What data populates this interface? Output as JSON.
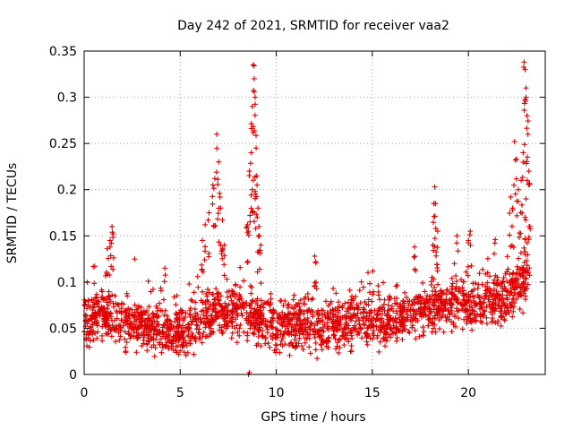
{
  "chart_data": {
    "type": "scatter",
    "title": "Day 242 of 2021, SRMTID for receiver vaa2",
    "xlabel": "GPS time / hours",
    "ylabel": "SRMTID / TECUs",
    "xlim": [
      0,
      24
    ],
    "ylim": [
      0,
      0.35
    ],
    "xticks": [
      0,
      5,
      10,
      15,
      20
    ],
    "xtick_labels": [
      "0",
      "5",
      "10",
      "15",
      "20"
    ],
    "yticks": [
      0,
      0.05,
      0.1,
      0.15,
      0.2,
      0.25,
      0.3,
      0.35
    ],
    "ytick_labels": [
      "0",
      "0.05",
      "0.1",
      "0.15",
      "0.2",
      "0.25",
      "0.3",
      "0.35"
    ],
    "grid": true,
    "marker": "+",
    "color": "#e00000",
    "series": [
      {
        "name": "vaa2",
        "baseline": [
          [
            0.0,
            0.055
          ],
          [
            1.0,
            0.065
          ],
          [
            2.0,
            0.055
          ],
          [
            3.0,
            0.052
          ],
          [
            4.0,
            0.05
          ],
          [
            5.0,
            0.045
          ],
          [
            6.0,
            0.055
          ],
          [
            7.0,
            0.07
          ],
          [
            8.0,
            0.072
          ],
          [
            9.0,
            0.06
          ],
          [
            10.0,
            0.055
          ],
          [
            11.0,
            0.055
          ],
          [
            12.0,
            0.052
          ],
          [
            13.0,
            0.05
          ],
          [
            14.0,
            0.06
          ],
          [
            15.0,
            0.058
          ],
          [
            16.0,
            0.06
          ],
          [
            17.0,
            0.065
          ],
          [
            18.0,
            0.07
          ],
          [
            19.0,
            0.078
          ],
          [
            20.0,
            0.075
          ],
          [
            21.0,
            0.08
          ],
          [
            22.0,
            0.082
          ],
          [
            23.0,
            0.1
          ],
          [
            23.2,
            0.1
          ]
        ],
        "spread": 0.025,
        "points_per_hour": 95,
        "peaks": [
          [
            1.45,
            0.16
          ],
          [
            1.35,
            0.145
          ],
          [
            1.5,
            0.152
          ],
          [
            1.2,
            0.136
          ],
          [
            0.55,
            0.117
          ],
          [
            4.2,
            0.115
          ],
          [
            6.15,
            0.145
          ],
          [
            6.3,
            0.162
          ],
          [
            6.5,
            0.175
          ],
          [
            6.7,
            0.205
          ],
          [
            6.8,
            0.212
          ],
          [
            6.9,
            0.26
          ],
          [
            7.0,
            0.23
          ],
          [
            7.05,
            0.196
          ],
          [
            7.1,
            0.18
          ],
          [
            7.2,
            0.167
          ],
          [
            7.3,
            0.14
          ],
          [
            8.5,
            0.162
          ],
          [
            8.55,
            0.155
          ],
          [
            8.6,
            0.22
          ],
          [
            8.7,
            0.24
          ],
          [
            8.75,
            0.29
          ],
          [
            8.8,
            0.335
          ],
          [
            8.85,
            0.32
          ],
          [
            8.9,
            0.3
          ],
          [
            8.95,
            0.245
          ],
          [
            9.0,
            0.205
          ],
          [
            9.05,
            0.18
          ],
          [
            9.1,
            0.16
          ],
          [
            9.2,
            0.14
          ],
          [
            8.75,
            0.2
          ],
          [
            8.9,
            0.198
          ],
          [
            12.0,
            0.128
          ],
          [
            12.05,
            0.122
          ],
          [
            17.2,
            0.138
          ],
          [
            18.25,
            0.203
          ],
          [
            18.2,
            0.185
          ],
          [
            18.3,
            0.158
          ],
          [
            18.4,
            0.155
          ],
          [
            18.15,
            0.14
          ],
          [
            19.4,
            0.15
          ],
          [
            20.1,
            0.155
          ],
          [
            20.0,
            0.145
          ],
          [
            21.4,
            0.146
          ],
          [
            22.2,
            0.192
          ],
          [
            22.3,
            0.18
          ],
          [
            22.4,
            0.252
          ],
          [
            22.5,
            0.233
          ],
          [
            22.6,
            0.2
          ],
          [
            22.75,
            0.21
          ],
          [
            22.85,
            0.24
          ],
          [
            22.9,
            0.338
          ],
          [
            22.95,
            0.33
          ],
          [
            23.0,
            0.31
          ],
          [
            23.05,
            0.28
          ],
          [
            23.1,
            0.26
          ],
          [
            23.15,
            0.22
          ],
          [
            23.2,
            0.16
          ],
          [
            23.0,
            0.19
          ],
          [
            22.95,
            0.17
          ],
          [
            8.55,
            0.0
          ],
          [
            8.6,
            0.002
          ]
        ]
      }
    ]
  }
}
